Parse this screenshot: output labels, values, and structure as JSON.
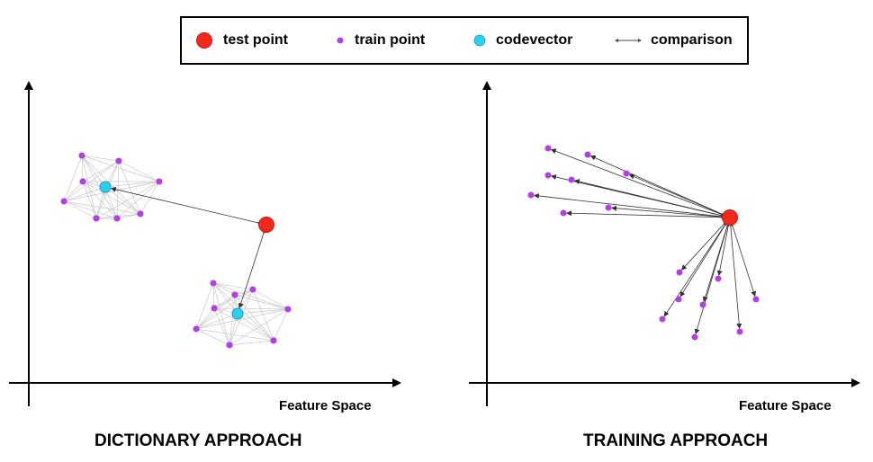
{
  "legend": {
    "test_point": "test point",
    "train_point": "train point",
    "codevector": "codevector",
    "comparison": "comparison"
  },
  "colors": {
    "test_point": "#f5281e",
    "train_point": "#b23ee8",
    "codevector": "#2bcff0",
    "mesh": "#c8c8c8",
    "arrow": "#333333"
  },
  "left_panel": {
    "axis_label": "Feature Space",
    "title": "DICTIONARY APPROACH"
  },
  "right_panel": {
    "axis_label": "Feature Space",
    "title": "TRAINING APPROACH"
  }
}
